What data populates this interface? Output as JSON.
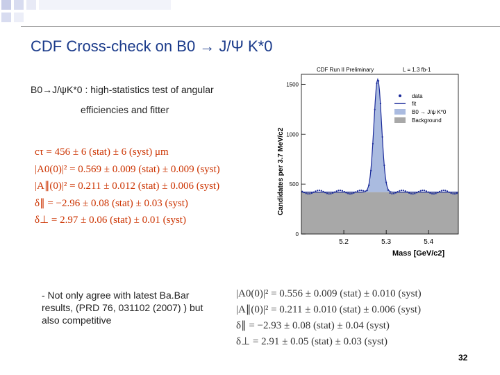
{
  "slide": {
    "title": "CDF Cross-check on B0 → J/Ψ K*0",
    "subtitle_line1": "B0→J/ψK*0 : high-statistics test of angular",
    "subtitle_line2": "efficiencies and fitter",
    "cdf_results": [
      "cτ = 456 ± 6 (stat) ± 6 (syst) μm",
      "|A0(0)|² = 0.569 ± 0.009 (stat) ± 0.009 (syst)",
      "|A∥(0)|² = 0.211 ± 0.012 (stat) ± 0.006 (syst)",
      "δ∥ = −2.96 ± 0.08 (stat) ± 0.03 (syst)",
      "δ⊥ = 2.97 ± 0.06 (stat) ± 0.01 (syst)"
    ],
    "comparison_note": "- Not only agree with latest Ba.Bar results, (PRD 76, 031102 (2007) ) but also competitive",
    "babar_results": [
      "|A0(0)|² = 0.556 ± 0.009 (stat) ± 0.010 (syst)",
      "|A∥(0)|² = 0.211 ± 0.010 (stat) ± 0.006 (syst)",
      "δ∥ = −2.93 ± 0.08 (stat) ± 0.04 (syst)",
      "δ⊥ = 2.91 ± 0.05 (stat) ± 0.03 (syst)"
    ],
    "page_number": "32"
  },
  "chart_data": {
    "type": "histogram",
    "header_left": "CDF Run II Preliminary",
    "header_right": "L = 1.3 fb-1",
    "xlabel": "Mass [GeV/c2]",
    "ylabel": "Candidates per 3.7 MeV/c2",
    "xlim": [
      5.1,
      5.47
    ],
    "ylim": [
      0,
      1600
    ],
    "x_ticks": [
      "5.2",
      "5.3",
      "5.4"
    ],
    "y_ticks": [
      "0",
      "500",
      "1000",
      "1500"
    ],
    "legend": [
      "data",
      "fit",
      "B0 → J/ψ K*0",
      "Background"
    ],
    "legend_position": "top-right",
    "background_level": 420,
    "peak_mass": 5.28,
    "peak_height": 1550,
    "colors": {
      "signal": "#aabbe0",
      "background": "#a8a8a8",
      "data": "#1a2a9a",
      "fit": "#1a2a9a"
    }
  }
}
